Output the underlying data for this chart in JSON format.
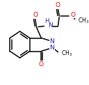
{
  "bg_color": "#ffffff",
  "figsize": [
    1.28,
    1.22
  ],
  "dpi": 100,
  "line_color": "#000000",
  "atom_colors": {
    "O": "#cc0000",
    "N": "#1a1a99",
    "C": "#000000"
  },
  "lw": 1.1
}
